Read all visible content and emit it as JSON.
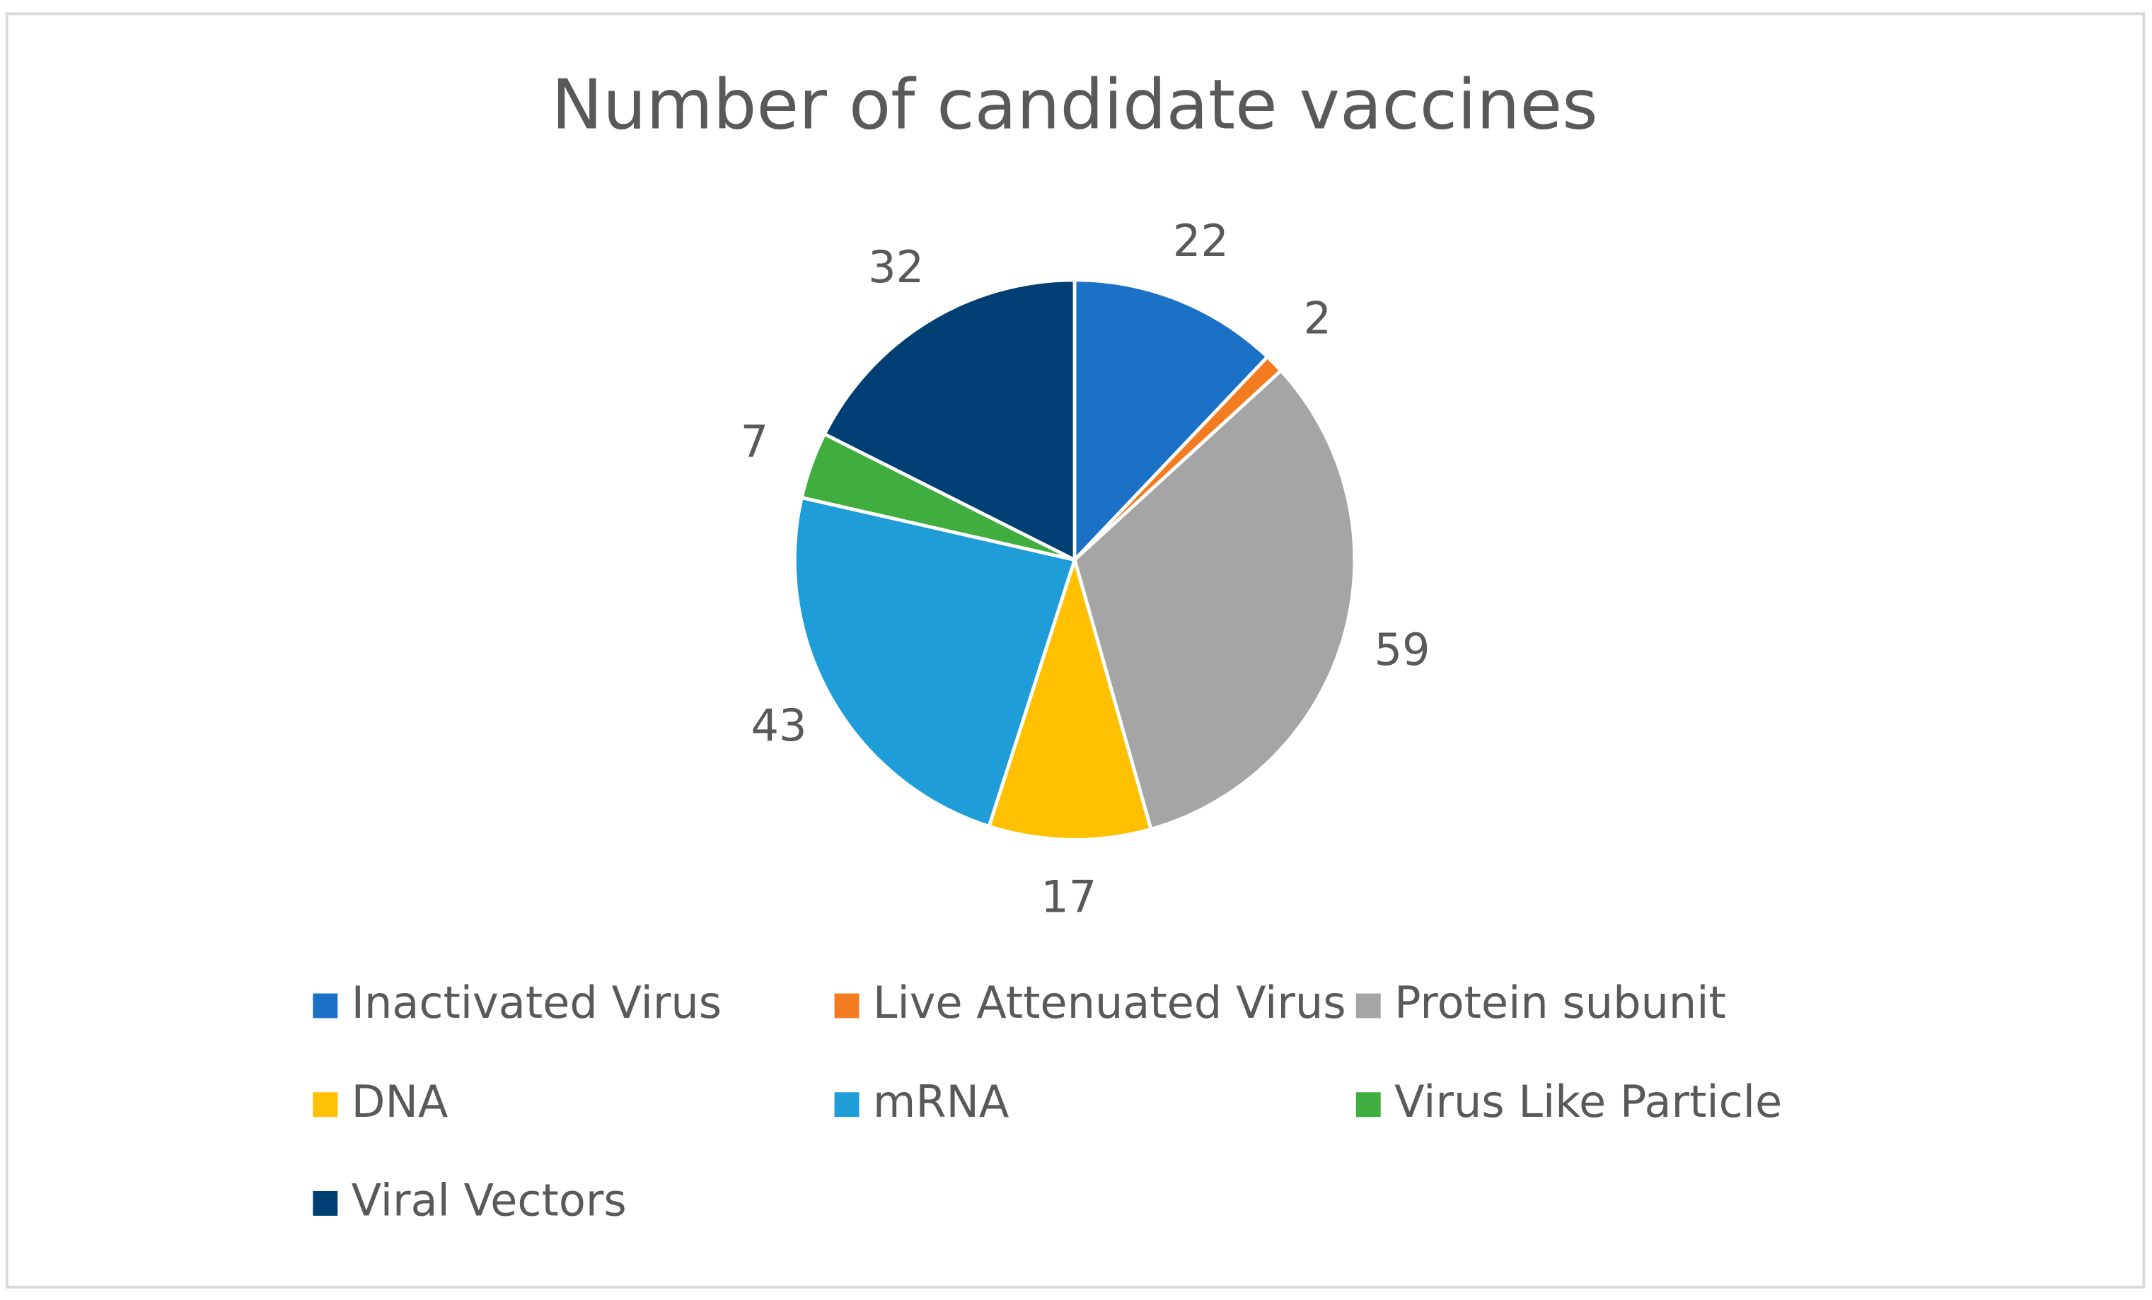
{
  "chart_data": {
    "type": "pie",
    "title": "Number of candidate vaccines",
    "categories": [
      "Inactivated Virus",
      "Live Attenuated Virus",
      "Protein subunit",
      "DNA",
      "mRNA",
      "Virus Like Particle",
      "Viral Vectors"
    ],
    "values": [
      22,
      2,
      59,
      17,
      43,
      7,
      32
    ],
    "colors": [
      "#1b71c6",
      "#f47c20",
      "#a5a5a5",
      "#ffc000",
      "#1e9dd9",
      "#3fae3f",
      "#003f74"
    ],
    "legend": "bottom"
  }
}
